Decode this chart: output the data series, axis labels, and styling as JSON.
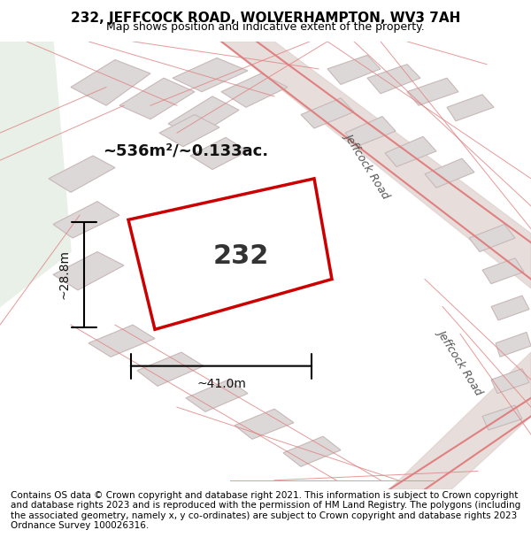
{
  "title": "232, JEFFCOCK ROAD, WOLVERHAMPTON, WV3 7AH",
  "subtitle": "Map shows position and indicative extent of the property.",
  "footer": "Contains OS data © Crown copyright and database right 2021. This information is subject to Crown copyright and database rights 2023 and is reproduced with the permission of HM Land Registry. The polygons (including the associated geometry, namely x, y co-ordinates) are subject to Crown copyright and database rights 2023 Ordnance Survey 100026316.",
  "area_label": "~536m²/~0.133ac.",
  "property_number": "232",
  "width_label": "~41.0m",
  "height_label": "~28.8m",
  "bg_color": "#f5f0f0",
  "map_bg": "#f2eeee",
  "road_color": "#e8d8d8",
  "building_fill": "#e0d8d8",
  "building_stroke": "#d0b8b8",
  "highlight_fill": "#ffffff",
  "highlight_stroke": "#cc0000",
  "green_area": "#e8f0e8",
  "road_label1": "Jeffcock Road",
  "road_label2": "Jeffcock Road",
  "title_fontsize": 11,
  "subtitle_fontsize": 9,
  "footer_fontsize": 7.5
}
